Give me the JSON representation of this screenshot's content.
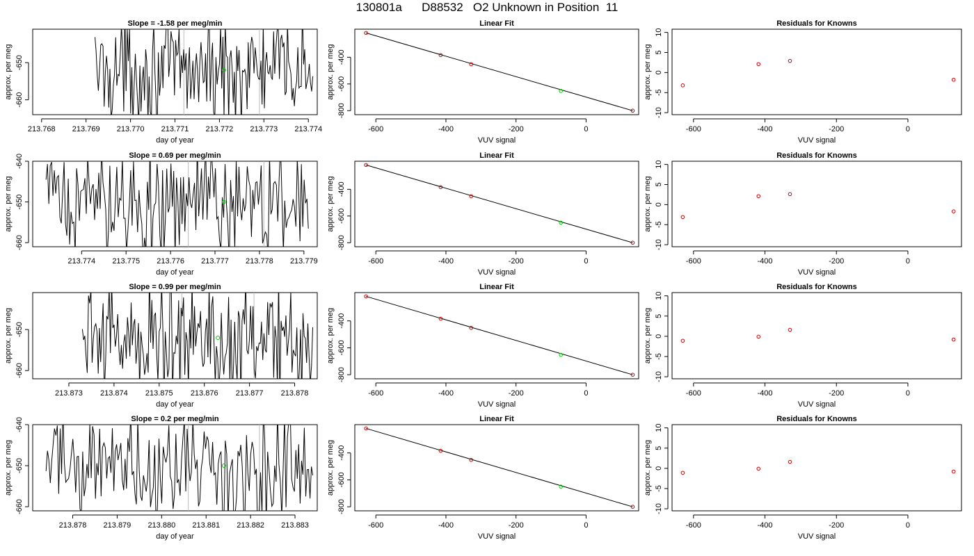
{
  "page": {
    "title": "130801a      D88532   O2 Unknown in Position  11"
  },
  "chart_data": [
    {
      "type": "line",
      "row": 0,
      "col": 0,
      "title": "Slope =  -1.58  per meg/min",
      "xlabel": "day of year",
      "ylabel": "approx. per meg",
      "xlim": [
        213.7678,
        213.7742
      ],
      "ylim": [
        -664,
        -641
      ],
      "xticks": [
        213.768,
        213.769,
        213.77,
        213.771,
        213.772,
        213.773,
        213.774
      ],
      "xtick_labels": [
        "213.768",
        "213.769",
        "213.770",
        "213.771",
        "213.772",
        "213.773",
        "213.774"
      ],
      "yticks": [
        -650,
        -660
      ],
      "ytick_labels": [
        "-650",
        "-660"
      ],
      "trace_x_range": [
        213.7692,
        213.7741
      ],
      "vlines": [
        213.7712,
        213.7729
      ],
      "marker": {
        "x": 213.7721,
        "y": -652
      },
      "marker_color": "#00cc00",
      "line_color": "#000000",
      "vline_color": "#bbbbbb"
    },
    {
      "type": "scatter",
      "row": 0,
      "col": 1,
      "title": "Linear Fit",
      "xlabel": "VUV signal",
      "ylabel": "approx. per meg",
      "xlim": [
        -660,
        150
      ],
      "ylim": [
        -830,
        -190
      ],
      "xticks": [
        -600,
        -400,
        -200,
        0
      ],
      "xtick_labels": [
        "-600",
        "-400",
        "-200",
        "0"
      ],
      "yticks": [
        -400,
        -600,
        -800
      ],
      "ytick_labels": [
        "-400",
        "-600",
        "-800"
      ],
      "fit_line": {
        "x": [
          -628,
          133
        ],
        "y": [
          -218,
          -800
        ]
      },
      "known_points": [
        {
          "x": -628,
          "y": -218
        },
        {
          "x": -415,
          "y": -384
        },
        {
          "x": -328,
          "y": -452
        },
        {
          "x": 133,
          "y": -800
        }
      ],
      "unknown_point": {
        "x": -72,
        "y": -652
      },
      "known_color": "#cc0000",
      "unknown_color": "#00cc00"
    },
    {
      "type": "scatter",
      "row": 0,
      "col": 2,
      "title": "Residuals for Knowns",
      "xlabel": "VUV signal",
      "ylabel": "approx. per meg",
      "xlim": [
        -660,
        150
      ],
      "ylim": [
        -10.5,
        10.8
      ],
      "xticks": [
        -600,
        -400,
        -200,
        0
      ],
      "xtick_labels": [
        "-600",
        "-400",
        "-200",
        "0"
      ],
      "yticks": [
        10,
        5,
        0,
        -5,
        -10
      ],
      "ytick_labels": [
        "10",
        "5",
        "0",
        "-5",
        "-10"
      ],
      "points": [
        {
          "x": -630,
          "y": -3.2
        },
        {
          "x": -418,
          "y": 2.1
        },
        {
          "x": -330,
          "y": 2.9
        },
        {
          "x": 128,
          "y": -1.8
        }
      ],
      "point_color": "#cc0000"
    },
    {
      "type": "line",
      "row": 1,
      "col": 0,
      "title": "Slope =  0.69  per meg/min",
      "xlabel": "day of year",
      "ylabel": "approx. per meg",
      "xlim": [
        213.7729,
        213.7793
      ],
      "ylim": [
        -661,
        -640
      ],
      "xticks": [
        213.774,
        213.775,
        213.776,
        213.777,
        213.778,
        213.779
      ],
      "xtick_labels": [
        "213.774",
        "213.775",
        "213.776",
        "213.777",
        "213.778",
        "213.779"
      ],
      "yticks": [
        -640,
        -650,
        -660
      ],
      "ytick_labels": [
        "-640",
        "-650",
        "-660"
      ],
      "trace_x_range": [
        213.7732,
        213.7791
      ],
      "vlines": [
        213.7764,
        213.7781
      ],
      "marker": {
        "x": 213.7772,
        "y": -650
      },
      "marker_color": "#00cc00",
      "line_color": "#000000",
      "vline_color": "#bbbbbb"
    },
    {
      "type": "scatter",
      "row": 1,
      "col": 1,
      "title": "Linear Fit",
      "xlabel": "VUV signal",
      "ylabel": "approx. per meg",
      "xlim": [
        -660,
        150
      ],
      "ylim": [
        -830,
        -190
      ],
      "xticks": [
        -600,
        -400,
        -200,
        0
      ],
      "xtick_labels": [
        "-600",
        "-400",
        "-200",
        "0"
      ],
      "yticks": [
        -400,
        -600,
        -800
      ],
      "ytick_labels": [
        "-400",
        "-600",
        "-800"
      ],
      "fit_line": {
        "x": [
          -628,
          133
        ],
        "y": [
          -218,
          -800
        ]
      },
      "known_points": [
        {
          "x": -628,
          "y": -218
        },
        {
          "x": -415,
          "y": -384
        },
        {
          "x": -328,
          "y": -452
        },
        {
          "x": 133,
          "y": -800
        }
      ],
      "unknown_point": {
        "x": -72,
        "y": -650
      },
      "known_color": "#cc0000",
      "unknown_color": "#00cc00"
    },
    {
      "type": "scatter",
      "row": 1,
      "col": 2,
      "title": "Residuals for Knowns",
      "xlabel": "VUV signal",
      "ylabel": "approx. per meg",
      "xlim": [
        -660,
        150
      ],
      "ylim": [
        -10.5,
        10.8
      ],
      "xticks": [
        -600,
        -400,
        -200,
        0
      ],
      "xtick_labels": [
        "-600",
        "-400",
        "-200",
        "0"
      ],
      "yticks": [
        10,
        5,
        0,
        -5,
        -10
      ],
      "ytick_labels": [
        "10",
        "5",
        "0",
        "-5",
        "-10"
      ],
      "points": [
        {
          "x": -630,
          "y": -3.1
        },
        {
          "x": -418,
          "y": 2.1
        },
        {
          "x": -330,
          "y": 2.6
        },
        {
          "x": 128,
          "y": -1.7
        }
      ],
      "point_color": "#cc0000"
    },
    {
      "type": "line",
      "row": 2,
      "col": 0,
      "title": "Slope =  0.99  per meg/min",
      "xlabel": "day of year",
      "ylabel": "approx. per meg",
      "xlim": [
        213.8722,
        213.8785
      ],
      "ylim": [
        -662,
        -641
      ],
      "xticks": [
        213.873,
        213.874,
        213.875,
        213.876,
        213.877,
        213.878
      ],
      "xtick_labels": [
        "213.873",
        "213.874",
        "213.875",
        "213.876",
        "213.877",
        "213.878"
      ],
      "yticks": [
        -650,
        -660
      ],
      "ytick_labels": [
        "-650",
        "-660"
      ],
      "trace_x_range": [
        213.8733,
        213.8784
      ],
      "vlines": [
        213.8755,
        213.8771
      ],
      "marker": {
        "x": 213.8763,
        "y": -652
      },
      "marker_color": "#00cc00",
      "line_color": "#000000",
      "vline_color": "#bbbbbb"
    },
    {
      "type": "scatter",
      "row": 2,
      "col": 1,
      "title": "Linear Fit",
      "xlabel": "VUV signal",
      "ylabel": "approx. per meg",
      "xlim": [
        -660,
        150
      ],
      "ylim": [
        -830,
        -190
      ],
      "xticks": [
        -600,
        -400,
        -200,
        0
      ],
      "xtick_labels": [
        "-600",
        "-400",
        "-200",
        "0"
      ],
      "yticks": [
        -400,
        -600,
        -800
      ],
      "ytick_labels": [
        "-400",
        "-600",
        "-800"
      ],
      "fit_line": {
        "x": [
          -628,
          133
        ],
        "y": [
          -218,
          -800
        ]
      },
      "known_points": [
        {
          "x": -628,
          "y": -218
        },
        {
          "x": -415,
          "y": -384
        },
        {
          "x": -328,
          "y": -452
        },
        {
          "x": 133,
          "y": -800
        }
      ],
      "unknown_point": {
        "x": -72,
        "y": -652
      },
      "known_color": "#cc0000",
      "unknown_color": "#00cc00"
    },
    {
      "type": "scatter",
      "row": 2,
      "col": 2,
      "title": "Residuals for Knowns",
      "xlabel": "VUV signal",
      "ylabel": "approx. per meg",
      "xlim": [
        -660,
        150
      ],
      "ylim": [
        -10.5,
        10.8
      ],
      "xticks": [
        -600,
        -400,
        -200,
        0
      ],
      "xtick_labels": [
        "-600",
        "-400",
        "-200",
        "0"
      ],
      "yticks": [
        10,
        5,
        0,
        -5,
        -10
      ],
      "ytick_labels": [
        "10",
        "5",
        "0",
        "-5",
        "-10"
      ],
      "points": [
        {
          "x": -630,
          "y": -1.1
        },
        {
          "x": -418,
          "y": -0.1
        },
        {
          "x": -330,
          "y": 1.6
        },
        {
          "x": 128,
          "y": -0.8
        }
      ],
      "point_color": "#cc0000"
    },
    {
      "type": "line",
      "row": 3,
      "col": 0,
      "title": "Slope =  0.2  per meg/min",
      "xlabel": "day of year",
      "ylabel": "approx. per meg",
      "xlim": [
        213.8771,
        213.8835
      ],
      "ylim": [
        -661,
        -640
      ],
      "xticks": [
        213.878,
        213.879,
        213.88,
        213.881,
        213.882,
        213.883
      ],
      "xtick_labels": [
        "213.878",
        "213.879",
        "213.880",
        "213.881",
        "213.882",
        "213.883"
      ],
      "yticks": [
        -640,
        -650,
        -660
      ],
      "ytick_labels": [
        "-640",
        "-650",
        "-660"
      ],
      "trace_x_range": [
        213.8774,
        213.8834
      ],
      "vlines": [
        213.8806,
        213.8822
      ],
      "marker": {
        "x": 213.8814,
        "y": -650
      },
      "marker_color": "#00cc00",
      "line_color": "#000000",
      "vline_color": "#bbbbbb"
    },
    {
      "type": "scatter",
      "row": 3,
      "col": 1,
      "title": "Linear Fit",
      "xlabel": "VUV signal",
      "ylabel": "approx. per meg",
      "xlim": [
        -660,
        150
      ],
      "ylim": [
        -830,
        -190
      ],
      "xticks": [
        -600,
        -400,
        -200,
        0
      ],
      "xtick_labels": [
        "-600",
        "-400",
        "-200",
        "0"
      ],
      "yticks": [
        -400,
        -600,
        -800
      ],
      "ytick_labels": [
        "-400",
        "-600",
        "-800"
      ],
      "fit_line": {
        "x": [
          -628,
          133
        ],
        "y": [
          -218,
          -800
        ]
      },
      "known_points": [
        {
          "x": -628,
          "y": -218
        },
        {
          "x": -415,
          "y": -384
        },
        {
          "x": -328,
          "y": -452
        },
        {
          "x": 133,
          "y": -800
        }
      ],
      "unknown_point": {
        "x": -72,
        "y": -650
      },
      "known_color": "#cc0000",
      "unknown_color": "#00cc00"
    },
    {
      "type": "scatter",
      "row": 3,
      "col": 2,
      "title": "Residuals for Knowns",
      "xlabel": "VUV signal",
      "ylabel": "approx. per meg",
      "xlim": [
        -660,
        150
      ],
      "ylim": [
        -10.5,
        10.8
      ],
      "xticks": [
        -600,
        -400,
        -200,
        0
      ],
      "xtick_labels": [
        "-600",
        "-400",
        "-200",
        "0"
      ],
      "yticks": [
        10,
        5,
        0,
        -5,
        -10
      ],
      "ytick_labels": [
        "10",
        "5",
        "0",
        "-5",
        "-10"
      ],
      "points": [
        {
          "x": -630,
          "y": -1.1
        },
        {
          "x": -418,
          "y": -0.1
        },
        {
          "x": -330,
          "y": 1.6
        },
        {
          "x": 128,
          "y": -0.8
        }
      ],
      "point_color": "#cc0000"
    }
  ]
}
